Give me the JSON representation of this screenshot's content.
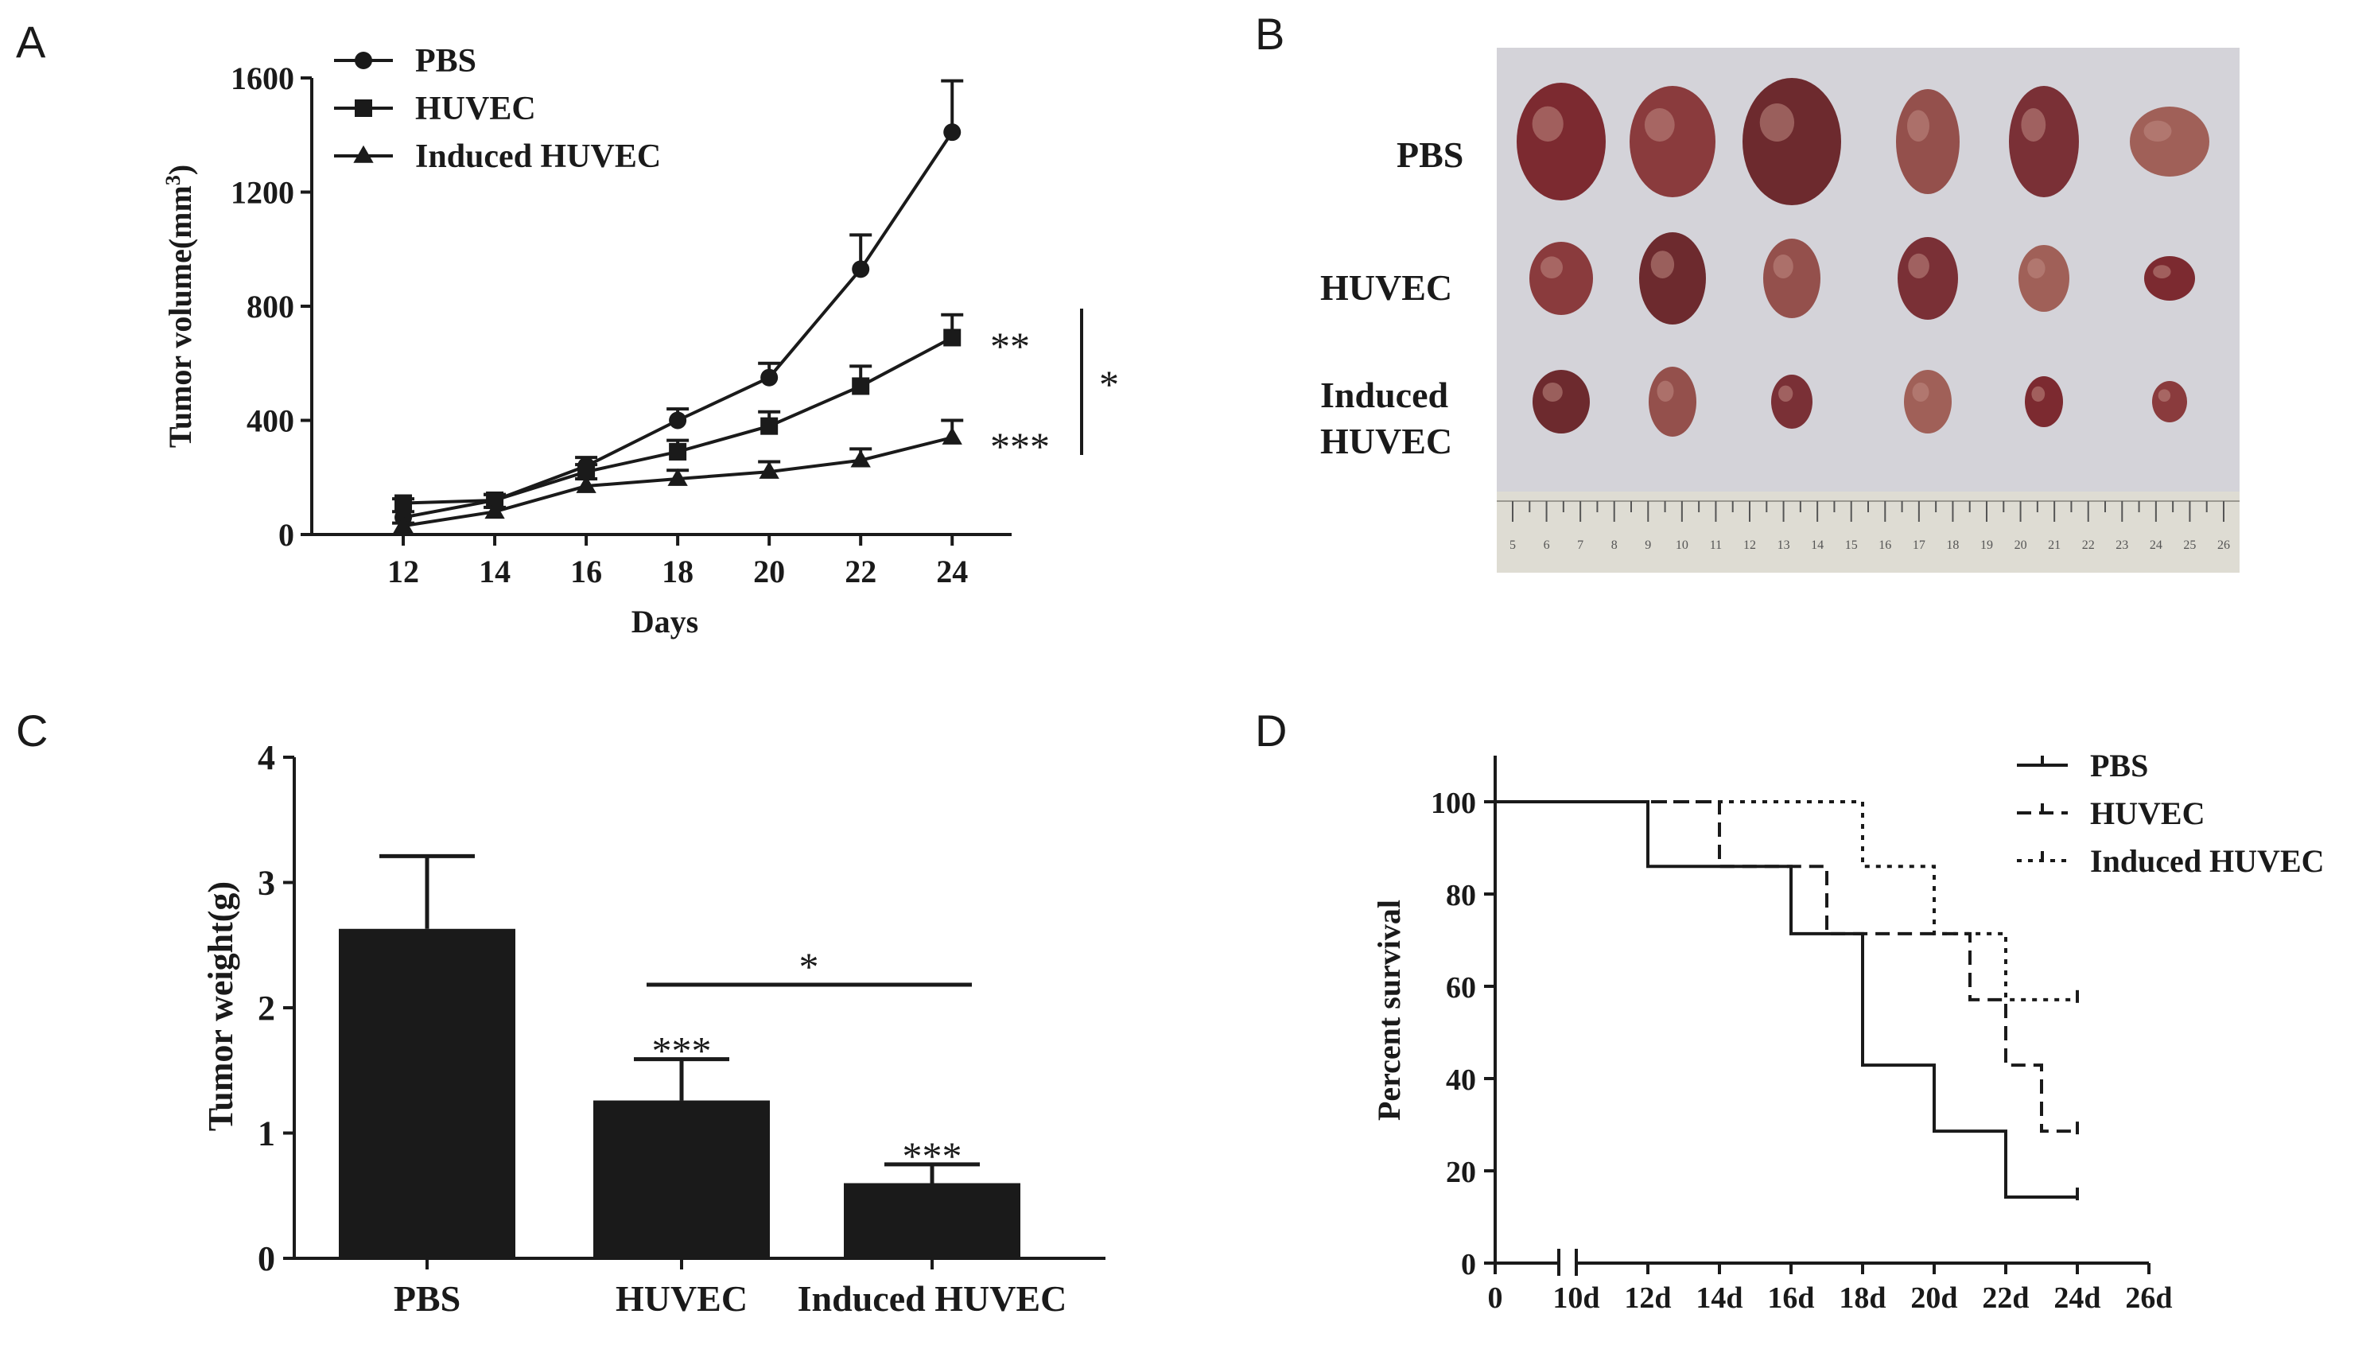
{
  "panels": {
    "A": "A",
    "B": "B",
    "C": "C",
    "D": "D"
  },
  "colors": {
    "ink": "#1a1a1a",
    "background": "#ffffff"
  },
  "chart_data": [
    {
      "id": "A",
      "type": "line",
      "xlabel": "Days",
      "ylabel_main": "Tumor volume(mm",
      "ylabel_sup": "3",
      "ylabel_tail": ")",
      "x": [
        12,
        14,
        16,
        18,
        20,
        22,
        24
      ],
      "xlim": [
        10,
        25.3
      ],
      "ylim": [
        0,
        1600
      ],
      "yticks": [
        0,
        400,
        800,
        1200,
        1600
      ],
      "series": [
        {
          "name": "PBS",
          "marker": "circle",
          "values": [
            60,
            120,
            240,
            400,
            550,
            930,
            1410
          ],
          "errors": [
            20,
            20,
            30,
            40,
            50,
            120,
            180
          ]
        },
        {
          "name": "HUVEC",
          "marker": "square",
          "values": [
            110,
            120,
            220,
            290,
            380,
            520,
            690
          ],
          "errors": [
            15,
            20,
            25,
            40,
            50,
            70,
            80
          ]
        },
        {
          "name": "Induced HUVEC",
          "marker": "triangle",
          "values": [
            30,
            80,
            170,
            195,
            220,
            260,
            340
          ],
          "errors": [
            10,
            15,
            25,
            30,
            35,
            40,
            60
          ]
        }
      ],
      "annotations": {
        "huvec_sig": "**",
        "induced_sig": "***",
        "bracket_sig": "*"
      }
    },
    {
      "id": "C",
      "type": "bar",
      "categories": [
        "PBS",
        "HUVEC",
        "Induced HUVEC"
      ],
      "values": [
        2.63,
        1.26,
        0.6
      ],
      "errors": [
        0.58,
        0.33,
        0.15
      ],
      "ylabel": "Tumor weight(g)",
      "ylim": [
        0,
        4
      ],
      "yticks": [
        0,
        1,
        2,
        3,
        4
      ],
      "bar_sig": [
        "",
        "***",
        "***"
      ],
      "bracket_sig": "*"
    },
    {
      "id": "D",
      "type": "line",
      "subtype": "survival-step",
      "ylabel": "Percent survival",
      "xticks": [
        0,
        10,
        12,
        14,
        16,
        18,
        20,
        22,
        24,
        26
      ],
      "xticklabels": [
        "0",
        "10d",
        "12d",
        "14d",
        "16d",
        "18d",
        "20d",
        "22d",
        "24d",
        "26d"
      ],
      "ylim": [
        0,
        110
      ],
      "yticks": [
        0,
        20,
        40,
        60,
        80,
        100
      ],
      "series": [
        {
          "name": "PBS",
          "style": "solid",
          "steps": [
            [
              10,
              100
            ],
            [
              12,
              86
            ],
            [
              16,
              71.4
            ],
            [
              18,
              42.9
            ],
            [
              20,
              28.6
            ],
            [
              22,
              14.3
            ]
          ],
          "end": 24
        },
        {
          "name": "HUVEC",
          "style": "dashed",
          "steps": [
            [
              10,
              100
            ],
            [
              14,
              86
            ],
            [
              17,
              71.4
            ],
            [
              21,
              57.1
            ],
            [
              22,
              42.9
            ],
            [
              23,
              28.6
            ]
          ],
          "end": 24
        },
        {
          "name": "Induced HUVEC",
          "style": "dotted",
          "steps": [
            [
              10,
              100
            ],
            [
              18,
              86
            ],
            [
              20,
              71.4
            ],
            [
              22,
              57.1
            ]
          ],
          "end": 24
        }
      ]
    }
  ],
  "photo": {
    "row_labels": [
      "PBS",
      "HUVEC",
      "Induced",
      "HUVEC"
    ],
    "ruler_labels": [
      "5",
      "6",
      "7",
      "8",
      "9",
      "10",
      "11",
      "12",
      "13",
      "14",
      "15",
      "16",
      "17",
      "18",
      "19",
      "20",
      "21",
      "22",
      "23",
      "24",
      "25",
      "26"
    ]
  }
}
